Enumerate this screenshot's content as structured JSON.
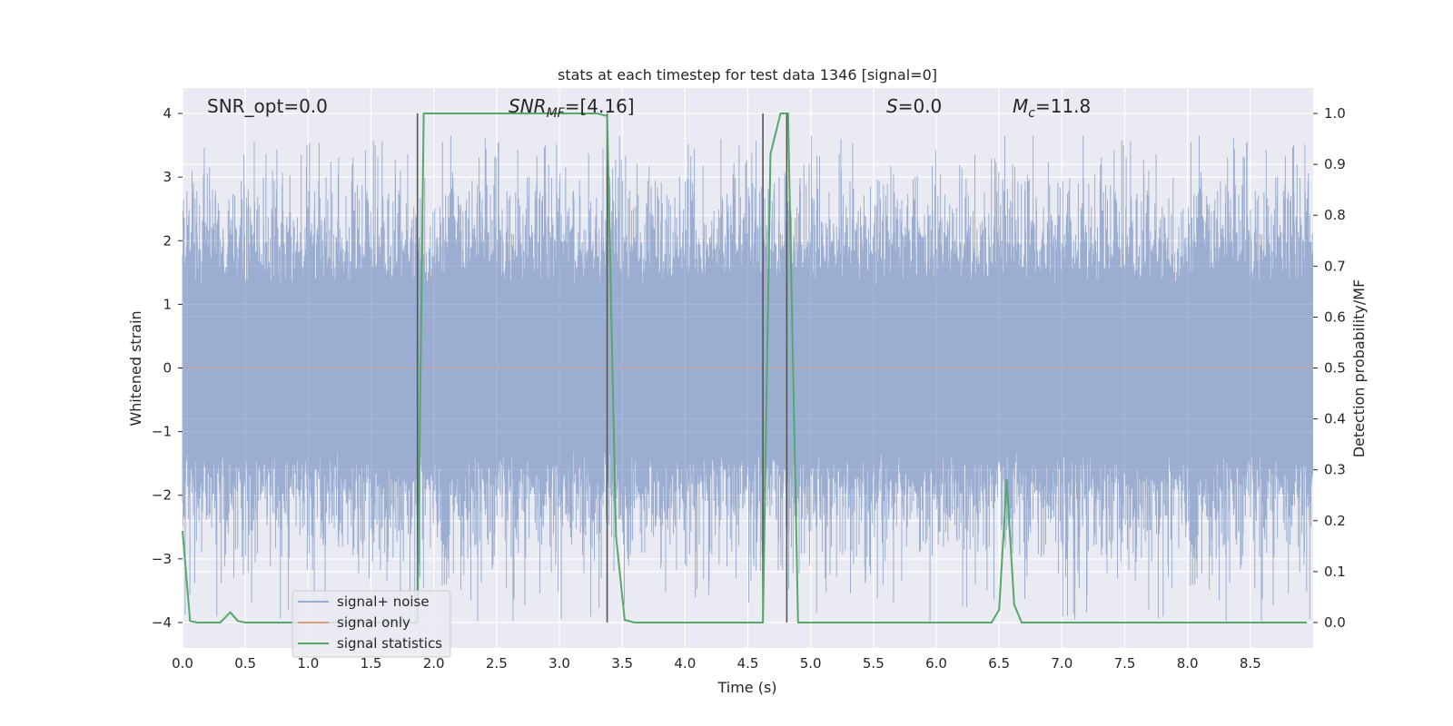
{
  "chart_data": {
    "type": "line",
    "title": "stats at each timestep for test data 1346 [signal=0]",
    "xlabel": "Time (s)",
    "ylabel_left": "Whitened strain",
    "ylabel_right": "Detection probability/MF",
    "xlim": [
      0.0,
      9.0
    ],
    "ylim_left": [
      -4.4,
      4.4
    ],
    "ylim_right": [
      -0.05,
      1.05
    ],
    "x_ticks": [
      "0.0",
      "0.5",
      "1.0",
      "1.5",
      "2.0",
      "2.5",
      "3.0",
      "3.5",
      "4.0",
      "4.5",
      "5.0",
      "5.5",
      "6.0",
      "6.5",
      "7.0",
      "7.5",
      "8.0",
      "8.5"
    ],
    "y_ticks_left": [
      "−4",
      "−3",
      "−2",
      "−1",
      "0",
      "1",
      "2",
      "3",
      "4"
    ],
    "y_ticks_right": [
      "0.0",
      "0.1",
      "0.2",
      "0.3",
      "0.4",
      "0.5",
      "0.6",
      "0.7",
      "0.8",
      "0.9",
      "1.0"
    ],
    "grid": true,
    "background": "#eaeaf2",
    "annotations": {
      "snr_opt": "SNR_opt=0.0",
      "snr_mf_main": "SNR",
      "snr_mf_sub": "MF",
      "snr_mf_value": "=[4.16]",
      "s_italic": "S",
      "s_value": "=0.0",
      "mc_main": "M",
      "mc_sub": "c",
      "mc_value": "=11.8"
    },
    "series": [
      {
        "name": "signal+ noise",
        "color": "#4c72b0",
        "axis": "left",
        "style": "dense noise envelope (whitened strain ~ N(0,1)), peaks up to ~3.6 and down to ~-4.0"
      },
      {
        "name": "signal only",
        "color": "#dd8452",
        "axis": "left",
        "style": "zero (no signal)"
      },
      {
        "name": "signal statistics",
        "color": "#55a868",
        "axis": "right",
        "x": [
          0.0,
          0.06,
          0.12,
          0.18,
          0.24,
          0.3,
          0.38,
          0.44,
          0.5,
          0.56,
          1.0,
          1.5,
          1.87,
          1.92,
          2.0,
          2.2,
          2.5,
          3.0,
          3.3,
          3.38,
          3.45,
          3.52,
          3.6,
          4.0,
          4.5,
          4.62,
          4.68,
          4.76,
          4.82,
          4.9,
          4.96,
          5.5,
          6.0,
          6.44,
          6.5,
          6.56,
          6.62,
          6.68,
          7.0,
          8.0,
          8.95
        ],
        "values": [
          0.18,
          0.003,
          0.0,
          0.0,
          0.0,
          0.0,
          0.02,
          0.003,
          0.0,
          0.0,
          0.0,
          0.0,
          0.0,
          1.0,
          1.0,
          1.0,
          1.0,
          1.0,
          1.0,
          0.995,
          0.17,
          0.005,
          0.0,
          0.0,
          0.0,
          0.0,
          0.92,
          1.0,
          1.0,
          0.0,
          0.0,
          0.0,
          0.0,
          0.0,
          0.025,
          0.28,
          0.035,
          0.0,
          0.0,
          0.0,
          0.0
        ]
      }
    ],
    "vertical_lines_x": [
      1.87,
      3.38,
      4.62,
      4.81
    ],
    "vertical_line_color": "#555555",
    "legend": {
      "placement": "lower-left",
      "items": [
        {
          "label": "signal+ noise",
          "color": "#4c72b0"
        },
        {
          "label": "signal only",
          "color": "#dd8452"
        },
        {
          "label": "signal statistics",
          "color": "#55a868"
        }
      ]
    }
  }
}
